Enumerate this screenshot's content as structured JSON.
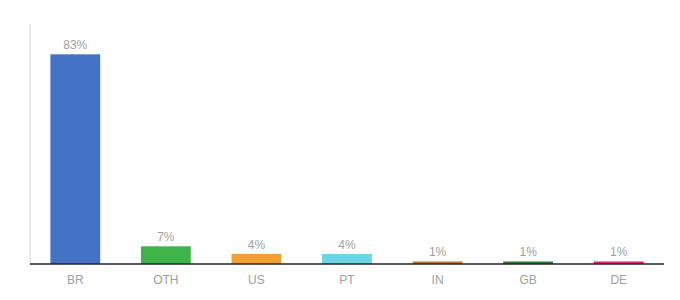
{
  "chart_data": {
    "type": "bar",
    "categories": [
      "BR",
      "OTH",
      "US",
      "PT",
      "IN",
      "GB",
      "DE"
    ],
    "values": [
      83,
      7,
      4,
      4,
      1,
      1,
      1
    ],
    "value_labels": [
      "83%",
      "7%",
      "4%",
      "4%",
      "1%",
      "1%",
      "1%"
    ],
    "colors": [
      "#4472c4",
      "#3db34a",
      "#f0a030",
      "#6dd4e8",
      "#c07828",
      "#2e7d32",
      "#e91e7a"
    ],
    "ylim": [
      0,
      95
    ],
    "data_labels": true,
    "tick_labels": "x",
    "grid": false
  }
}
